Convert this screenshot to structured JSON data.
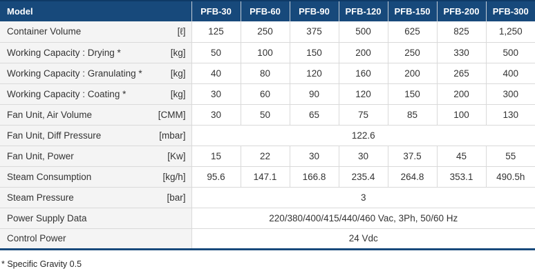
{
  "table": {
    "header": {
      "model_label": "Model",
      "columns": [
        "PFB-30",
        "PFB-60",
        "PFB-90",
        "PFB-120",
        "PFB-150",
        "PFB-200",
        "PFB-300"
      ]
    },
    "rows": [
      {
        "label": "Container Volume",
        "unit": "[ℓ]",
        "values": [
          "125",
          "250",
          "375",
          "500",
          "625",
          "825",
          "1,250"
        ]
      },
      {
        "label": "Working Capacity : Drying *",
        "unit": "[kg]",
        "values": [
          "50",
          "100",
          "150",
          "200",
          "250",
          "330",
          "500"
        ]
      },
      {
        "label": "Working Capacity : Granulating *",
        "unit": "[kg]",
        "values": [
          "40",
          "80",
          "120",
          "160",
          "200",
          "265",
          "400"
        ]
      },
      {
        "label": "Working Capacity : Coating *",
        "unit": "[kg]",
        "values": [
          "30",
          "60",
          "90",
          "120",
          "150",
          "200",
          "300"
        ]
      },
      {
        "label": "Fan Unit, Air Volume",
        "unit": "[CMM]",
        "values": [
          "30",
          "50",
          "65",
          "75",
          "85",
          "100",
          "130"
        ]
      },
      {
        "label": "Fan Unit, Diff Pressure",
        "unit": "[mbar]",
        "merged": "122.6"
      },
      {
        "label": "Fan Unit, Power",
        "unit": "[Kw]",
        "values": [
          "15",
          "22",
          "30",
          "30",
          "37.5",
          "45",
          "55"
        ]
      },
      {
        "label": "Steam Consumption",
        "unit": "[kg/h]",
        "values": [
          "95.6",
          "147.1",
          "166.8",
          "235.4",
          "264.8",
          "353.1",
          "490.5h"
        ]
      },
      {
        "label": "Steam Pressure",
        "unit": "[bar]",
        "merged": "3"
      },
      {
        "label": "Power Supply Data",
        "unit": "",
        "merged": "220/380/400/415/440/460 Vac, 3Ph, 50/60 Hz"
      },
      {
        "label": "Control Power",
        "unit": "",
        "merged": "24 Vdc"
      }
    ],
    "footnote": "* Specific Gravity 0.5"
  },
  "colors": {
    "header_bg": "#17497b",
    "header_top_border": "#0e3a66",
    "header_text": "#ffffff",
    "label_cell_bg": "#f4f4f4",
    "grid_line": "#d9d9d9",
    "body_text": "#333333"
  }
}
